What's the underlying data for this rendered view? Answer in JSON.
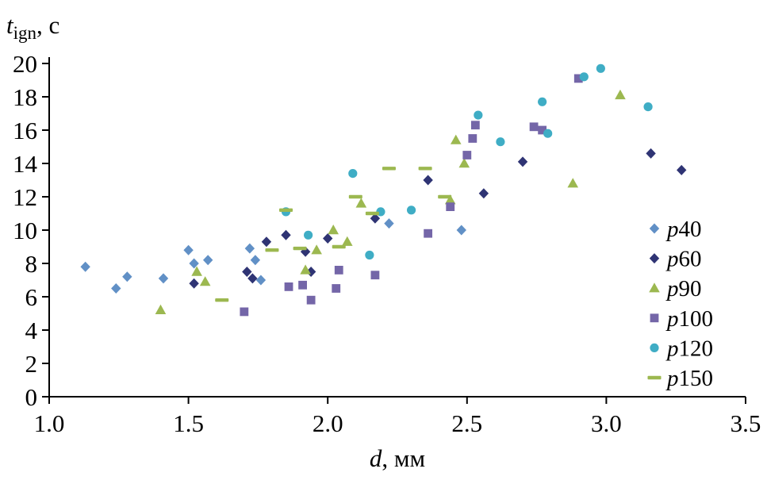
{
  "chart_data": {
    "type": "scatter",
    "title": "",
    "ylabel": "t_ign, с",
    "xlabel": "d, мм",
    "ylabel_parts": {
      "var": "t",
      "sub": "ign",
      "unit": ", с"
    },
    "xlabel_parts": {
      "var": "d",
      "unit": ", мм"
    },
    "xlim": [
      1.0,
      3.5
    ],
    "ylim": [
      0,
      20
    ],
    "xticks": [
      {
        "v": 1.0,
        "label": "1.0"
      },
      {
        "v": 1.5,
        "label": "1.5"
      },
      {
        "v": 2.0,
        "label": "2.0"
      },
      {
        "v": 2.5,
        "label": "2.5"
      },
      {
        "v": 3.0,
        "label": "3.0"
      },
      {
        "v": 3.5,
        "label": "3.5"
      }
    ],
    "yticks": [
      {
        "v": 0,
        "label": "0"
      },
      {
        "v": 2,
        "label": "2"
      },
      {
        "v": 4,
        "label": "4"
      },
      {
        "v": 6,
        "label": "6"
      },
      {
        "v": 8,
        "label": "8"
      },
      {
        "v": 10,
        "label": "10"
      },
      {
        "v": 12,
        "label": "12"
      },
      {
        "v": 14,
        "label": "14"
      },
      {
        "v": 16,
        "label": "16"
      },
      {
        "v": 18,
        "label": "18"
      },
      {
        "v": 20,
        "label": "20"
      }
    ],
    "grid": false,
    "legend_position": "inside-right",
    "axis_color": "#000000",
    "background": "#ffffff",
    "series": [
      {
        "label_prefix": "p",
        "label_value": "40",
        "marker": "diamond",
        "color": "#6190c6",
        "points": [
          [
            1.13,
            7.8
          ],
          [
            1.24,
            6.5
          ],
          [
            1.28,
            7.2
          ],
          [
            1.41,
            7.1
          ],
          [
            1.5,
            8.8
          ],
          [
            1.52,
            8.0
          ],
          [
            1.57,
            8.2
          ],
          [
            1.72,
            8.9
          ],
          [
            1.74,
            8.2
          ],
          [
            1.76,
            7.0
          ],
          [
            2.22,
            10.4
          ],
          [
            2.48,
            10.0
          ]
        ]
      },
      {
        "label_prefix": "p",
        "label_value": "60",
        "marker": "diamond",
        "color": "#2f3474",
        "points": [
          [
            1.52,
            6.8
          ],
          [
            1.71,
            7.5
          ],
          [
            1.73,
            7.1
          ],
          [
            1.78,
            9.3
          ],
          [
            1.85,
            9.7
          ],
          [
            1.92,
            8.7
          ],
          [
            1.94,
            7.5
          ],
          [
            2.0,
            9.5
          ],
          [
            2.17,
            10.7
          ],
          [
            2.36,
            13.0
          ],
          [
            2.56,
            12.2
          ],
          [
            2.7,
            14.1
          ],
          [
            3.16,
            14.6
          ],
          [
            3.27,
            13.6
          ]
        ]
      },
      {
        "label_prefix": "p",
        "label_value": "90",
        "marker": "triangle",
        "color": "#9cb850",
        "points": [
          [
            1.4,
            5.2
          ],
          [
            1.53,
            7.5
          ],
          [
            1.56,
            6.9
          ],
          [
            1.92,
            7.6
          ],
          [
            1.96,
            8.8
          ],
          [
            2.02,
            10.0
          ],
          [
            2.07,
            9.3
          ],
          [
            2.12,
            11.6
          ],
          [
            2.44,
            11.8
          ],
          [
            2.46,
            15.4
          ],
          [
            2.49,
            14.0
          ],
          [
            2.88,
            12.8
          ],
          [
            3.05,
            18.1
          ]
        ]
      },
      {
        "label_prefix": "p",
        "label_value": "100",
        "marker": "square",
        "color": "#7466a8",
        "points": [
          [
            1.7,
            5.1
          ],
          [
            1.86,
            6.6
          ],
          [
            1.91,
            6.7
          ],
          [
            1.94,
            5.8
          ],
          [
            2.03,
            6.5
          ],
          [
            2.04,
            7.6
          ],
          [
            2.17,
            7.3
          ],
          [
            2.36,
            9.8
          ],
          [
            2.44,
            11.4
          ],
          [
            2.5,
            14.5
          ],
          [
            2.52,
            15.5
          ],
          [
            2.53,
            16.3
          ],
          [
            2.74,
            16.2
          ],
          [
            2.77,
            16.0
          ],
          [
            2.9,
            19.1
          ]
        ]
      },
      {
        "label_prefix": "p",
        "label_value": "120",
        "marker": "circle",
        "color": "#3fadc5",
        "points": [
          [
            1.85,
            11.1
          ],
          [
            1.93,
            9.7
          ],
          [
            2.09,
            13.4
          ],
          [
            2.15,
            8.5
          ],
          [
            2.19,
            11.1
          ],
          [
            2.3,
            11.2
          ],
          [
            2.54,
            16.9
          ],
          [
            2.62,
            15.3
          ],
          [
            2.77,
            17.7
          ],
          [
            2.79,
            15.8
          ],
          [
            2.92,
            19.2
          ],
          [
            2.98,
            19.7
          ],
          [
            3.15,
            17.4
          ]
        ]
      },
      {
        "label_prefix": "p",
        "label_value": "150",
        "marker": "dash",
        "color": "#9cb850",
        "points": [
          [
            1.62,
            5.8
          ],
          [
            1.8,
            8.8
          ],
          [
            1.85,
            11.2
          ],
          [
            1.9,
            8.9
          ],
          [
            2.04,
            9.0
          ],
          [
            2.1,
            12.0
          ],
          [
            2.16,
            11.0
          ],
          [
            2.22,
            13.7
          ],
          [
            2.35,
            13.7
          ],
          [
            2.42,
            12.0
          ]
        ]
      }
    ]
  }
}
